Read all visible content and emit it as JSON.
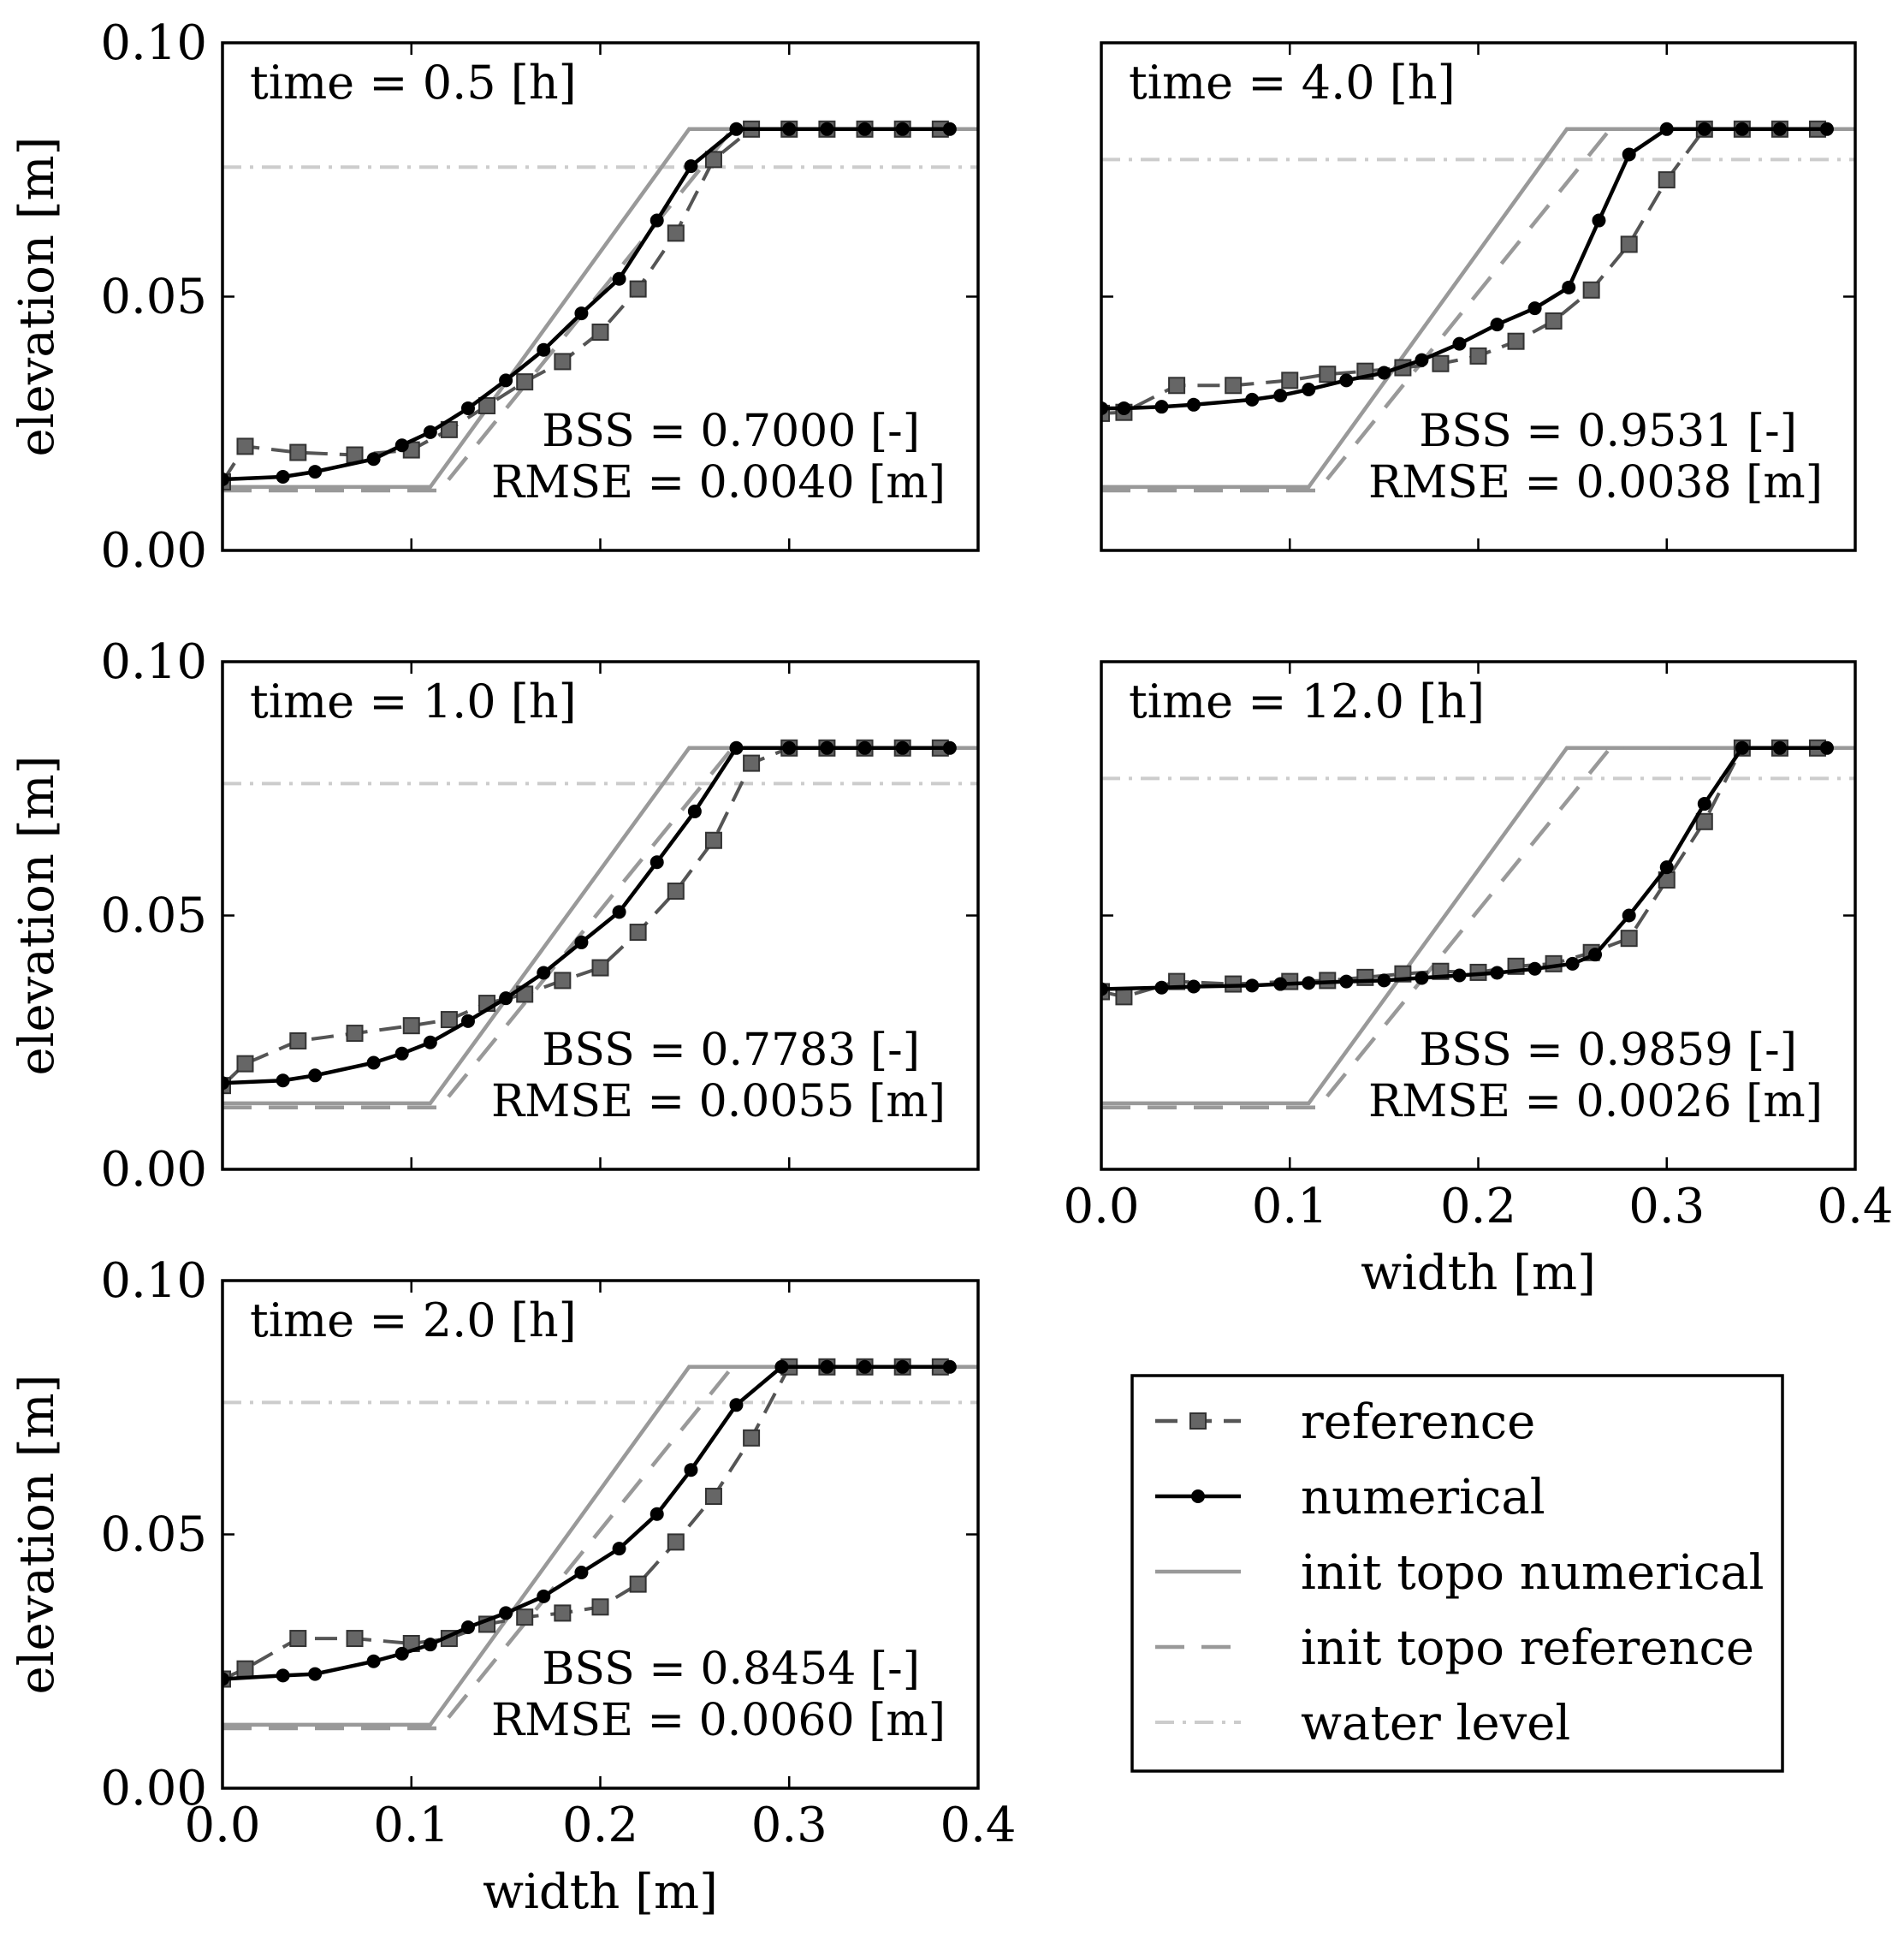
{
  "chart_data": [
    {
      "type": "line",
      "panel": "time-0.5",
      "time_label": "time = 0.5 [h]",
      "bss_label": "BSS = 0.7000 [-]",
      "rmse_label": "RMSE = 0.0040 [m]",
      "ylabel": "elevation [m]",
      "xlabel": "",
      "xlim": [
        0.0,
        0.4
      ],
      "ylim": [
        0.0,
        0.1
      ],
      "yticklabels": [
        "0.00",
        "0.05",
        "0.10"
      ],
      "xticklabels": [],
      "water_level": 0.0755,
      "series": [
        {
          "name": "reference",
          "x": [
            0.0,
            0.012,
            0.04,
            0.07,
            0.1,
            0.12,
            0.14,
            0.16,
            0.18,
            0.2,
            0.22,
            0.24,
            0.26,
            0.28,
            0.3,
            0.32,
            0.34,
            0.36,
            0.38
          ],
          "y": [
            0.0135,
            0.0205,
            0.0193,
            0.0188,
            0.0198,
            0.0238,
            0.0285,
            0.0332,
            0.0372,
            0.043,
            0.0515,
            0.0625,
            0.077,
            0.083,
            0.083,
            0.083,
            0.083,
            0.083,
            0.083
          ]
        },
        {
          "name": "numerical",
          "x": [
            0.0,
            0.032,
            0.049,
            0.08,
            0.095,
            0.11,
            0.13,
            0.15,
            0.17,
            0.19,
            0.21,
            0.23,
            0.248,
            0.272,
            0.3,
            0.32,
            0.34,
            0.36,
            0.385
          ],
          "y": [
            0.014,
            0.0145,
            0.0155,
            0.018,
            0.0207,
            0.0233,
            0.028,
            0.0335,
            0.0395,
            0.0467,
            0.0535,
            0.065,
            0.0757,
            0.083,
            0.083,
            0.083,
            0.083,
            0.083,
            0.083
          ]
        },
        {
          "name": "init topo numerical",
          "x": [
            0.0,
            0.11,
            0.247,
            0.4
          ],
          "y": [
            0.0125,
            0.0125,
            0.083,
            0.083
          ]
        },
        {
          "name": "init topo reference",
          "x": [
            0.0,
            0.115,
            0.27,
            0.4
          ],
          "y": [
            0.0118,
            0.0118,
            0.083,
            0.083
          ]
        }
      ]
    },
    {
      "type": "line",
      "panel": "time-4.0",
      "time_label": "time = 4.0 [h]",
      "bss_label": "BSS = 0.9531 [-]",
      "rmse_label": "RMSE = 0.0038 [m]",
      "ylabel": "",
      "xlabel": "",
      "xlim": [
        0.0,
        0.4
      ],
      "ylim": [
        0.0,
        0.1
      ],
      "yticklabels": [],
      "xticklabels": [],
      "water_level": 0.077,
      "series": [
        {
          "name": "reference",
          "x": [
            0.0,
            0.012,
            0.04,
            0.07,
            0.1,
            0.12,
            0.14,
            0.16,
            0.18,
            0.2,
            0.22,
            0.24,
            0.26,
            0.28,
            0.3,
            0.32,
            0.34,
            0.36,
            0.38
          ],
          "y": [
            0.027,
            0.0272,
            0.0325,
            0.0325,
            0.0335,
            0.0347,
            0.0353,
            0.036,
            0.0368,
            0.0383,
            0.0412,
            0.0452,
            0.0513,
            0.0603,
            0.073,
            0.083,
            0.083,
            0.083,
            0.083
          ]
        },
        {
          "name": "numerical",
          "x": [
            0.0,
            0.012,
            0.032,
            0.049,
            0.08,
            0.095,
            0.11,
            0.13,
            0.15,
            0.17,
            0.19,
            0.21,
            0.23,
            0.248,
            0.264,
            0.28,
            0.3,
            0.32,
            0.34,
            0.36,
            0.385
          ],
          "y": [
            0.028,
            0.028,
            0.0283,
            0.0287,
            0.0297,
            0.0305,
            0.0317,
            0.0335,
            0.035,
            0.0375,
            0.0407,
            0.0445,
            0.0477,
            0.0518,
            0.065,
            0.078,
            0.083,
            0.083,
            0.083,
            0.083,
            0.083
          ]
        },
        {
          "name": "init topo numerical",
          "x": [
            0.0,
            0.11,
            0.247,
            0.4
          ],
          "y": [
            0.0125,
            0.0125,
            0.083,
            0.083
          ]
        },
        {
          "name": "init topo reference",
          "x": [
            0.0,
            0.115,
            0.27,
            0.4
          ],
          "y": [
            0.0118,
            0.0118,
            0.083,
            0.083
          ]
        }
      ]
    },
    {
      "type": "line",
      "panel": "time-1.0",
      "time_label": "time = 1.0 [h]",
      "bss_label": "BSS = 0.7783 [-]",
      "rmse_label": "RMSE = 0.0055 [m]",
      "ylabel": "elevation [m]",
      "xlabel": "",
      "xlim": [
        0.0,
        0.4
      ],
      "ylim": [
        0.0,
        0.1
      ],
      "yticklabels": [
        "0.00",
        "0.05",
        "0.10"
      ],
      "xticklabels": [],
      "water_level": 0.076,
      "series": [
        {
          "name": "reference",
          "x": [
            0.0,
            0.012,
            0.04,
            0.07,
            0.1,
            0.12,
            0.14,
            0.16,
            0.18,
            0.2,
            0.22,
            0.24,
            0.26,
            0.28,
            0.3,
            0.32,
            0.34,
            0.36,
            0.38
          ],
          "y": [
            0.0165,
            0.0208,
            0.0253,
            0.0268,
            0.0283,
            0.0295,
            0.0327,
            0.0345,
            0.0372,
            0.0397,
            0.0467,
            0.0548,
            0.0648,
            0.08,
            0.083,
            0.083,
            0.083,
            0.083,
            0.083
          ]
        },
        {
          "name": "numerical",
          "x": [
            0.0,
            0.032,
            0.049,
            0.08,
            0.095,
            0.11,
            0.13,
            0.15,
            0.17,
            0.19,
            0.21,
            0.23,
            0.25,
            0.272,
            0.3,
            0.32,
            0.34,
            0.36,
            0.385
          ],
          "y": [
            0.017,
            0.0175,
            0.0185,
            0.021,
            0.0228,
            0.025,
            0.0292,
            0.0337,
            0.0387,
            0.0447,
            0.0507,
            0.0605,
            0.0705,
            0.083,
            0.083,
            0.083,
            0.083,
            0.083,
            0.083
          ]
        },
        {
          "name": "init topo numerical",
          "x": [
            0.0,
            0.11,
            0.247,
            0.4
          ],
          "y": [
            0.013,
            0.013,
            0.083,
            0.083
          ]
        },
        {
          "name": "init topo reference",
          "x": [
            0.0,
            0.115,
            0.27,
            0.4
          ],
          "y": [
            0.0122,
            0.0122,
            0.083,
            0.083
          ]
        }
      ]
    },
    {
      "type": "line",
      "panel": "time-12.0",
      "time_label": "time = 12.0 [h]",
      "bss_label": "BSS = 0.9859 [-]",
      "rmse_label": "RMSE = 0.0026 [m]",
      "ylabel": "",
      "xlabel": "width [m]",
      "xlim": [
        0.0,
        0.4
      ],
      "ylim": [
        0.0,
        0.1
      ],
      "yticklabels": [],
      "xticklabels": [
        "0.0",
        "0.1",
        "0.2",
        "0.3",
        "0.4"
      ],
      "water_level": 0.077,
      "series": [
        {
          "name": "reference",
          "x": [
            0.0,
            0.012,
            0.04,
            0.07,
            0.1,
            0.12,
            0.14,
            0.16,
            0.18,
            0.2,
            0.22,
            0.24,
            0.26,
            0.28,
            0.3,
            0.32,
            0.34,
            0.36,
            0.38
          ],
          "y": [
            0.035,
            0.034,
            0.037,
            0.0365,
            0.037,
            0.0372,
            0.0378,
            0.0385,
            0.039,
            0.0388,
            0.04,
            0.0405,
            0.0427,
            0.0455,
            0.057,
            0.0685,
            0.083,
            0.083,
            0.083
          ]
        },
        {
          "name": "numerical",
          "x": [
            0.0,
            0.032,
            0.049,
            0.08,
            0.095,
            0.11,
            0.13,
            0.15,
            0.17,
            0.19,
            0.21,
            0.23,
            0.25,
            0.262,
            0.28,
            0.3,
            0.32,
            0.34,
            0.36,
            0.385
          ],
          "y": [
            0.0355,
            0.0358,
            0.036,
            0.0362,
            0.0365,
            0.0367,
            0.037,
            0.0372,
            0.0377,
            0.0382,
            0.0387,
            0.0395,
            0.0405,
            0.0423,
            0.05,
            0.0595,
            0.072,
            0.083,
            0.083,
            0.083
          ]
        },
        {
          "name": "init topo numerical",
          "x": [
            0.0,
            0.11,
            0.247,
            0.4
          ],
          "y": [
            0.013,
            0.013,
            0.083,
            0.083
          ]
        },
        {
          "name": "init topo reference",
          "x": [
            0.0,
            0.115,
            0.27,
            0.4
          ],
          "y": [
            0.0122,
            0.0122,
            0.083,
            0.083
          ]
        }
      ]
    },
    {
      "type": "line",
      "panel": "time-2.0",
      "time_label": "time = 2.0 [h]",
      "bss_label": "BSS = 0.8454 [-]",
      "rmse_label": "RMSE = 0.0060 [m]",
      "ylabel": "elevation [m]",
      "xlabel": "width [m]",
      "xlim": [
        0.0,
        0.4
      ],
      "ylim": [
        0.0,
        0.1
      ],
      "yticklabels": [
        "0.00",
        "0.05",
        "0.10"
      ],
      "xticklabels": [
        "0.0",
        "0.1",
        "0.2",
        "0.3",
        "0.4"
      ],
      "water_level": 0.076,
      "series": [
        {
          "name": "reference",
          "x": [
            0.0,
            0.012,
            0.04,
            0.07,
            0.1,
            0.12,
            0.14,
            0.16,
            0.18,
            0.2,
            0.22,
            0.24,
            0.26,
            0.28,
            0.3,
            0.32,
            0.34,
            0.36,
            0.38
          ],
          "y": [
            0.0215,
            0.0235,
            0.0295,
            0.0295,
            0.0285,
            0.0295,
            0.0323,
            0.0337,
            0.0345,
            0.0357,
            0.0402,
            0.0485,
            0.0575,
            0.069,
            0.083,
            0.083,
            0.083,
            0.083,
            0.083
          ]
        },
        {
          "name": "numerical",
          "x": [
            0.0,
            0.032,
            0.049,
            0.08,
            0.095,
            0.11,
            0.13,
            0.15,
            0.17,
            0.19,
            0.21,
            0.23,
            0.248,
            0.272,
            0.296,
            0.32,
            0.34,
            0.36,
            0.385
          ],
          "y": [
            0.0215,
            0.0222,
            0.0225,
            0.025,
            0.0265,
            0.0283,
            0.0317,
            0.0345,
            0.0378,
            0.0425,
            0.0472,
            0.054,
            0.0627,
            0.0755,
            0.083,
            0.083,
            0.083,
            0.083,
            0.083
          ]
        },
        {
          "name": "init topo numerical",
          "x": [
            0.0,
            0.11,
            0.247,
            0.4
          ],
          "y": [
            0.0125,
            0.0125,
            0.083,
            0.083
          ]
        },
        {
          "name": "init topo reference",
          "x": [
            0.0,
            0.115,
            0.27,
            0.4
          ],
          "y": [
            0.0118,
            0.0118,
            0.083,
            0.083
          ]
        }
      ]
    }
  ],
  "legend": {
    "location": "bottom-right",
    "entries": [
      "reference",
      "numerical",
      "init topo numerical",
      "init topo reference",
      "water level"
    ]
  },
  "styles": {
    "reference": {
      "color": "#555555",
      "marker_fill": "#666666",
      "dash": "26 14"
    },
    "numerical": {
      "color": "#000000"
    },
    "init topo numerical": {
      "color": "#999999"
    },
    "init topo reference": {
      "color": "#999999",
      "dash": "34 20"
    },
    "water level": {
      "color": "#cccccc",
      "dash": "22 10 4 10"
    }
  }
}
